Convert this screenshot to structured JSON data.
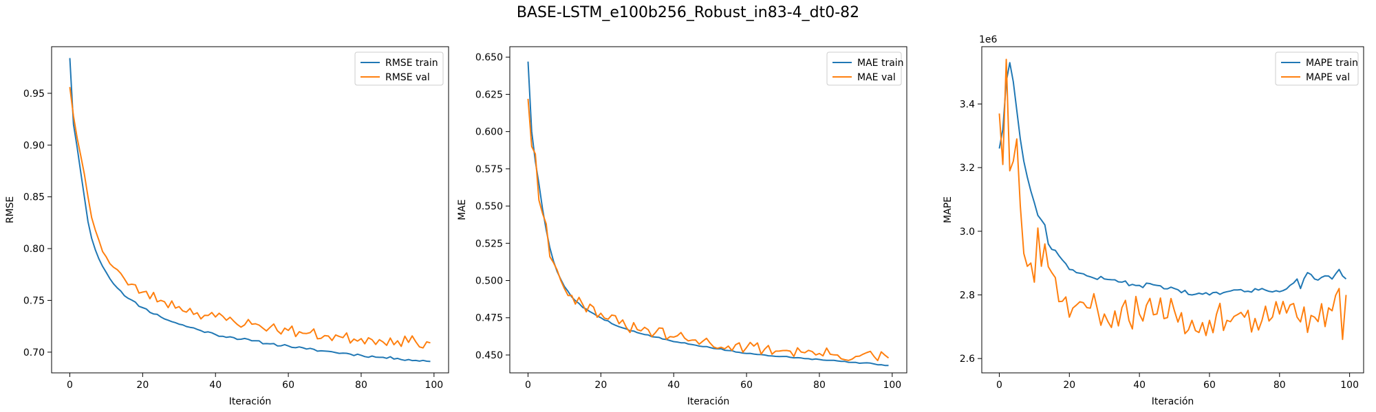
{
  "figure": {
    "title": "BASE-LSTM_e100b256_Robust_in83-4_dt0-82"
  },
  "chart_data": [
    {
      "type": "line",
      "title": "",
      "xlabel": "Iteración",
      "ylabel": "RMSE",
      "scale_label": "",
      "xlim": [
        -5,
        104
      ],
      "ylim": [
        0.68,
        0.995
      ],
      "xticks": [
        0,
        20,
        40,
        60,
        80,
        100
      ],
      "xtick_labels": [
        "0",
        "20",
        "40",
        "60",
        "80",
        "100"
      ],
      "yticks": [
        0.7,
        0.75,
        0.8,
        0.85,
        0.9,
        0.95
      ],
      "ytick_labels": [
        "0.70",
        "0.75",
        "0.80",
        "0.85",
        "0.90",
        "0.95"
      ],
      "legend_position": "top-right",
      "grid": false,
      "series": [
        {
          "name": "RMSE train",
          "color": "#1f77b4",
          "keypoints": [
            [
              0,
              0.984
            ],
            [
              1,
              0.92
            ],
            [
              2,
              0.898
            ],
            [
              3,
              0.874
            ],
            [
              4,
              0.85
            ],
            [
              5,
              0.826
            ],
            [
              6,
              0.81
            ],
            [
              7,
              0.799
            ],
            [
              8,
              0.79
            ],
            [
              10,
              0.777
            ],
            [
              12,
              0.766
            ],
            [
              14,
              0.759
            ],
            [
              16,
              0.752
            ],
            [
              20,
              0.743
            ],
            [
              25,
              0.734
            ],
            [
              30,
              0.727
            ],
            [
              35,
              0.722
            ],
            [
              40,
              0.717
            ],
            [
              45,
              0.714
            ],
            [
              50,
              0.711
            ],
            [
              55,
              0.708
            ],
            [
              60,
              0.706
            ],
            [
              65,
              0.703
            ],
            [
              70,
              0.701
            ],
            [
              75,
              0.699
            ],
            [
              80,
              0.697
            ],
            [
              85,
              0.695
            ],
            [
              90,
              0.694
            ],
            [
              95,
              0.692
            ],
            [
              99,
              0.691
            ]
          ],
          "noise": 0.0012,
          "seed": 11
        },
        {
          "name": "RMSE val",
          "color": "#ff7f0e",
          "keypoints": [
            [
              0,
              0.956
            ],
            [
              1,
              0.928
            ],
            [
              2,
              0.907
            ],
            [
              3,
              0.89
            ],
            [
              4,
              0.872
            ],
            [
              5,
              0.85
            ],
            [
              6,
              0.83
            ],
            [
              7,
              0.818
            ],
            [
              8,
              0.808
            ],
            [
              10,
              0.792
            ],
            [
              12,
              0.782
            ],
            [
              14,
              0.776
            ],
            [
              16,
              0.765
            ],
            [
              20,
              0.758
            ],
            [
              25,
              0.75
            ],
            [
              30,
              0.744
            ],
            [
              35,
              0.738
            ],
            [
              40,
              0.734
            ],
            [
              45,
              0.73
            ],
            [
              50,
              0.727
            ],
            [
              55,
              0.724
            ],
            [
              60,
              0.721
            ],
            [
              65,
              0.718
            ],
            [
              70,
              0.716
            ],
            [
              75,
              0.714
            ],
            [
              80,
              0.713
            ],
            [
              85,
              0.712
            ],
            [
              90,
              0.711
            ],
            [
              95,
              0.71
            ],
            [
              99,
              0.709
            ]
          ],
          "noise": 0.0055,
          "seed": 23
        }
      ]
    },
    {
      "type": "line",
      "title": "",
      "xlabel": "Iteración",
      "ylabel": "MAE",
      "scale_label": "",
      "xlim": [
        -5,
        104
      ],
      "ylim": [
        0.438,
        0.657
      ],
      "xticks": [
        0,
        20,
        40,
        60,
        80,
        100
      ],
      "xtick_labels": [
        "0",
        "20",
        "40",
        "60",
        "80",
        "100"
      ],
      "yticks": [
        0.45,
        0.475,
        0.5,
        0.525,
        0.55,
        0.575,
        0.6,
        0.625,
        0.65
      ],
      "ytick_labels": [
        "0.450",
        "0.475",
        "0.500",
        "0.525",
        "0.550",
        "0.575",
        "0.600",
        "0.625",
        "0.650"
      ],
      "legend_position": "top-right",
      "grid": false,
      "series": [
        {
          "name": "MAE train",
          "color": "#1f77b4",
          "keypoints": [
            [
              0,
              0.647
            ],
            [
              1,
              0.6
            ],
            [
              2,
              0.58
            ],
            [
              3,
              0.565
            ],
            [
              4,
              0.548
            ],
            [
              5,
              0.534
            ],
            [
              6,
              0.522
            ],
            [
              7,
              0.513
            ],
            [
              8,
              0.506
            ],
            [
              10,
              0.496
            ],
            [
              12,
              0.489
            ],
            [
              15,
              0.482
            ],
            [
              20,
              0.475
            ],
            [
              25,
              0.469
            ],
            [
              30,
              0.465
            ],
            [
              35,
              0.462
            ],
            [
              40,
              0.459
            ],
            [
              45,
              0.457
            ],
            [
              50,
              0.455
            ],
            [
              55,
              0.453
            ],
            [
              60,
              0.451
            ],
            [
              65,
              0.45
            ],
            [
              70,
              0.449
            ],
            [
              75,
              0.448
            ],
            [
              80,
              0.447
            ],
            [
              85,
              0.446
            ],
            [
              90,
              0.445
            ],
            [
              95,
              0.444
            ],
            [
              99,
              0.443
            ]
          ],
          "noise": 0.0004,
          "seed": 5
        },
        {
          "name": "MAE val",
          "color": "#ff7f0e",
          "keypoints": [
            [
              0,
              0.622
            ],
            [
              1,
              0.59
            ],
            [
              2,
              0.585
            ],
            [
              3,
              0.554
            ],
            [
              4,
              0.545
            ],
            [
              5,
              0.538
            ],
            [
              6,
              0.516
            ],
            [
              7,
              0.512
            ],
            [
              8,
              0.507
            ],
            [
              9,
              0.5
            ],
            [
              12,
              0.49
            ],
            [
              15,
              0.484
            ],
            [
              20,
              0.478
            ],
            [
              25,
              0.471
            ],
            [
              30,
              0.467
            ],
            [
              35,
              0.465
            ],
            [
              40,
              0.462
            ],
            [
              45,
              0.46
            ],
            [
              50,
              0.458
            ],
            [
              55,
              0.456
            ],
            [
              60,
              0.455
            ],
            [
              65,
              0.454
            ],
            [
              70,
              0.453
            ],
            [
              75,
              0.452
            ],
            [
              80,
              0.451
            ],
            [
              85,
              0.45
            ],
            [
              90,
              0.449
            ],
            [
              95,
              0.449
            ],
            [
              99,
              0.448
            ]
          ],
          "noise": 0.0042,
          "seed": 31
        }
      ]
    },
    {
      "type": "line",
      "title": "",
      "xlabel": "Iteración",
      "ylabel": "MAPE",
      "scale_label": "1e6",
      "xlim": [
        -5,
        104
      ],
      "ylim": [
        2.555,
        3.58
      ],
      "xticks": [
        0,
        20,
        40,
        60,
        80,
        100
      ],
      "xtick_labels": [
        "0",
        "20",
        "40",
        "60",
        "80",
        "100"
      ],
      "yticks": [
        2.6,
        2.8,
        3.0,
        3.2,
        3.4
      ],
      "ytick_labels": [
        "2.6",
        "2.8",
        "3.0",
        "3.2",
        "3.4"
      ],
      "legend_position": "top-right",
      "grid": false,
      "series": [
        {
          "name": "MAPE train",
          "color": "#1f77b4",
          "keypoints": [
            [
              0,
              3.26
            ],
            [
              1,
              3.32
            ],
            [
              2,
              3.47
            ],
            [
              3,
              3.53
            ],
            [
              4,
              3.47
            ],
            [
              5,
              3.38
            ],
            [
              6,
              3.29
            ],
            [
              7,
              3.22
            ],
            [
              8,
              3.17
            ],
            [
              10,
              3.09
            ],
            [
              11,
              3.05
            ],
            [
              13,
              3.02
            ],
            [
              14,
              2.96
            ],
            [
              16,
              2.94
            ],
            [
              18,
              2.91
            ],
            [
              20,
              2.88
            ],
            [
              22,
              2.87
            ],
            [
              25,
              2.86
            ],
            [
              30,
              2.85
            ],
            [
              35,
              2.84
            ],
            [
              40,
              2.83
            ],
            [
              45,
              2.83
            ],
            [
              50,
              2.82
            ],
            [
              55,
              2.8
            ],
            [
              60,
              2.8
            ],
            [
              65,
              2.81
            ],
            [
              70,
              2.81
            ],
            [
              75,
              2.82
            ],
            [
              80,
              2.81
            ],
            [
              83,
              2.83
            ],
            [
              85,
              2.85
            ],
            [
              86,
              2.82
            ],
            [
              88,
              2.87
            ],
            [
              90,
              2.85
            ],
            [
              93,
              2.86
            ],
            [
              95,
              2.85
            ],
            [
              97,
              2.88
            ],
            [
              99,
              2.85
            ]
          ],
          "noise": 0.007,
          "seed": 47
        },
        {
          "name": "MAPE val",
          "color": "#ff7f0e",
          "keypoints": [
            [
              0,
              3.37
            ],
            [
              1,
              3.21
            ],
            [
              2,
              3.54
            ],
            [
              3,
              3.19
            ],
            [
              4,
              3.22
            ],
            [
              5,
              3.29
            ],
            [
              6,
              3.08
            ],
            [
              7,
              2.93
            ],
            [
              8,
              2.89
            ],
            [
              9,
              2.9
            ],
            [
              10,
              2.84
            ],
            [
              11,
              3.01
            ],
            [
              12,
              2.89
            ],
            [
              13,
              2.96
            ],
            [
              15,
              2.87
            ],
            [
              18,
              2.78
            ],
            [
              20,
              2.73
            ],
            [
              25,
              2.76
            ],
            [
              30,
              2.74
            ],
            [
              35,
              2.76
            ],
            [
              40,
              2.74
            ],
            [
              45,
              2.74
            ],
            [
              50,
              2.75
            ],
            [
              55,
              2.72
            ],
            [
              60,
              2.72
            ],
            [
              65,
              2.72
            ],
            [
              70,
              2.73
            ],
            [
              75,
              2.72
            ],
            [
              80,
              2.74
            ],
            [
              85,
              2.73
            ],
            [
              90,
              2.73
            ],
            [
              95,
              2.75
            ],
            [
              97,
              2.82
            ],
            [
              98,
              2.66
            ],
            [
              99,
              2.8
            ]
          ],
          "noise": 0.055,
          "seed": 59
        }
      ]
    }
  ]
}
